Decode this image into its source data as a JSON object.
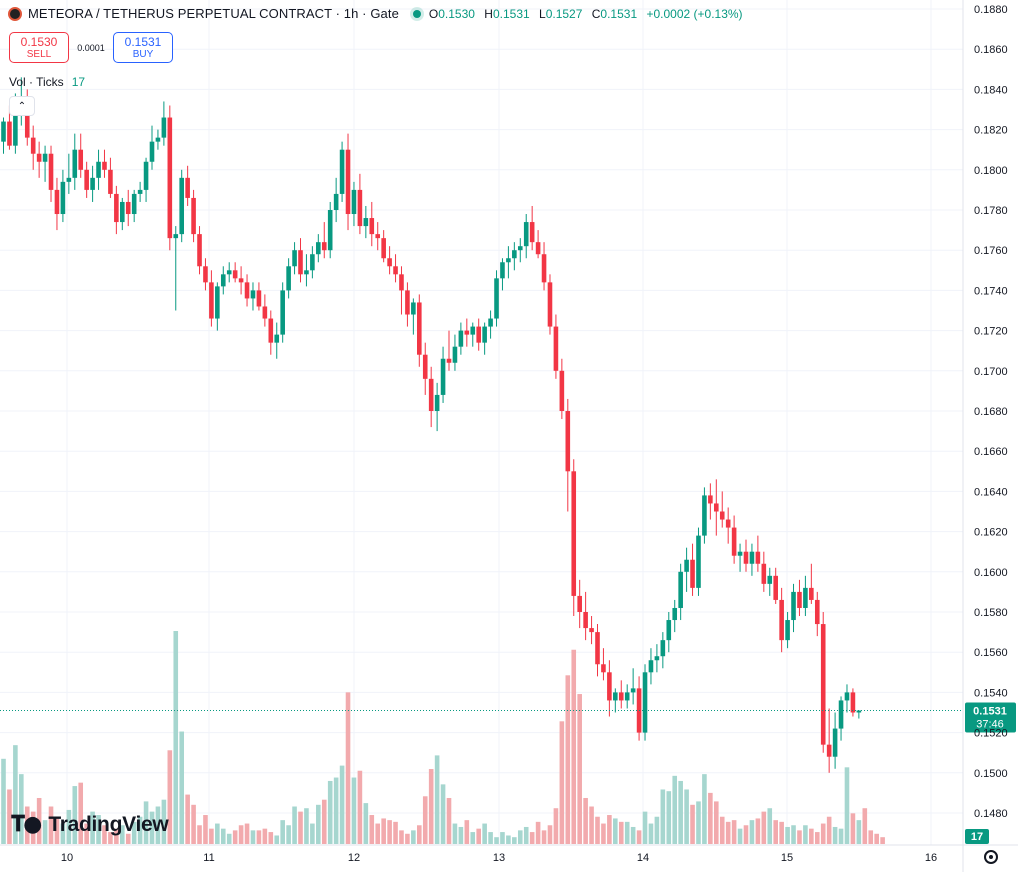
{
  "header": {
    "title": "METEORA / TETHERUS PERPETUAL CONTRACT · 1h · Gate",
    "ohlc": [
      {
        "k": "O",
        "v": "0.1530"
      },
      {
        "k": "H",
        "v": "0.1531"
      },
      {
        "k": "L",
        "v": "0.1527"
      },
      {
        "k": "C",
        "v": "0.1531"
      },
      {
        "k": "",
        "v": "+0.0002 (+0.13%)"
      }
    ]
  },
  "trade": {
    "sell_price": "0.1530",
    "sell_label": "SELL",
    "spread": "0.0001",
    "buy_price": "0.1531",
    "buy_label": "BUY"
  },
  "volume": {
    "label": "Vol · Ticks",
    "value": "17"
  },
  "branding": {
    "name": "TradingView"
  },
  "colors": {
    "up": "#089981",
    "down": "#f23645",
    "up_vol": "#a6d6cf",
    "down_vol": "#f2aaad",
    "grid": "#f0f3fa",
    "price_tag": "#089981"
  },
  "chart_data": {
    "type": "candlestick",
    "interval": "1h",
    "x_ticks": [
      "10",
      "11",
      "12",
      "13",
      "14",
      "15",
      "16"
    ],
    "y_ticks": [
      "0.1480",
      "0.1500",
      "0.1520",
      "0.1540",
      "0.1560",
      "0.1580",
      "0.1600",
      "0.1620",
      "0.1640",
      "0.1660",
      "0.1680",
      "0.1700",
      "0.1720",
      "0.1740",
      "0.1760",
      "0.1780",
      "0.1800",
      "0.1820",
      "0.1840",
      "0.1860",
      "0.1880"
    ],
    "ylim": [
      0.1468,
      0.1893
    ],
    "last_price": "0.1531",
    "countdown": "37:46",
    "volume_last": "17",
    "ohlc": [
      [
        0.1814,
        0.1826,
        0.1808,
        0.1824
      ],
      [
        0.1824,
        0.1832,
        0.181,
        0.1812
      ],
      [
        0.1812,
        0.1838,
        0.1808,
        0.1828
      ],
      [
        0.1828,
        0.1846,
        0.1822,
        0.1836
      ],
      [
        0.1836,
        0.184,
        0.1812,
        0.1816
      ],
      [
        0.1816,
        0.1822,
        0.18,
        0.1808
      ],
      [
        0.1808,
        0.1814,
        0.1796,
        0.1804
      ],
      [
        0.1804,
        0.1812,
        0.1794,
        0.1808
      ],
      [
        0.1808,
        0.1812,
        0.1784,
        0.179
      ],
      [
        0.179,
        0.1796,
        0.177,
        0.1778
      ],
      [
        0.1778,
        0.18,
        0.1774,
        0.1794
      ],
      [
        0.1794,
        0.1808,
        0.1788,
        0.1796
      ],
      [
        0.1796,
        0.1818,
        0.179,
        0.181
      ],
      [
        0.181,
        0.1818,
        0.1796,
        0.18
      ],
      [
        0.18,
        0.1804,
        0.1786,
        0.179
      ],
      [
        0.179,
        0.1802,
        0.1784,
        0.1796
      ],
      [
        0.1796,
        0.181,
        0.179,
        0.1804
      ],
      [
        0.1804,
        0.181,
        0.1796,
        0.18
      ],
      [
        0.18,
        0.1806,
        0.1786,
        0.1788
      ],
      [
        0.1788,
        0.1792,
        0.1768,
        0.1774
      ],
      [
        0.1774,
        0.1786,
        0.177,
        0.1784
      ],
      [
        0.1784,
        0.179,
        0.1772,
        0.1778
      ],
      [
        0.1778,
        0.179,
        0.1774,
        0.1788
      ],
      [
        0.1788,
        0.1794,
        0.1784,
        0.179
      ],
      [
        0.179,
        0.1806,
        0.1784,
        0.1804
      ],
      [
        0.1804,
        0.1822,
        0.18,
        0.1814
      ],
      [
        0.1814,
        0.182,
        0.181,
        0.1816
      ],
      [
        0.1816,
        0.1834,
        0.1812,
        0.1826
      ],
      [
        0.1826,
        0.1832,
        0.176,
        0.1766
      ],
      [
        0.1766,
        0.1772,
        0.173,
        0.1768
      ],
      [
        0.1768,
        0.18,
        0.1764,
        0.1796
      ],
      [
        0.1796,
        0.1802,
        0.1782,
        0.1786
      ],
      [
        0.1786,
        0.179,
        0.1764,
        0.1768
      ],
      [
        0.1768,
        0.1772,
        0.1748,
        0.1752
      ],
      [
        0.1752,
        0.1756,
        0.174,
        0.1744
      ],
      [
        0.1744,
        0.175,
        0.1722,
        0.1726
      ],
      [
        0.1726,
        0.1744,
        0.172,
        0.1742
      ],
      [
        0.1742,
        0.1752,
        0.1738,
        0.1748
      ],
      [
        0.1748,
        0.1754,
        0.1744,
        0.175
      ],
      [
        0.175,
        0.1754,
        0.1744,
        0.1746
      ],
      [
        0.1746,
        0.1752,
        0.1738,
        0.1744
      ],
      [
        0.1744,
        0.1748,
        0.1732,
        0.1736
      ],
      [
        0.1736,
        0.1744,
        0.173,
        0.174
      ],
      [
        0.174,
        0.1744,
        0.173,
        0.1732
      ],
      [
        0.1732,
        0.1738,
        0.1722,
        0.1726
      ],
      [
        0.1726,
        0.173,
        0.1708,
        0.1714
      ],
      [
        0.1714,
        0.1724,
        0.1706,
        0.1718
      ],
      [
        0.1718,
        0.1744,
        0.1714,
        0.174
      ],
      [
        0.174,
        0.1756,
        0.1736,
        0.1752
      ],
      [
        0.1752,
        0.1764,
        0.1748,
        0.176
      ],
      [
        0.176,
        0.1766,
        0.1744,
        0.1748
      ],
      [
        0.1748,
        0.1758,
        0.1742,
        0.175
      ],
      [
        0.175,
        0.1762,
        0.1746,
        0.1758
      ],
      [
        0.1758,
        0.1768,
        0.1754,
        0.1764
      ],
      [
        0.1764,
        0.1774,
        0.1756,
        0.176
      ],
      [
        0.176,
        0.1784,
        0.1756,
        0.178
      ],
      [
        0.178,
        0.1796,
        0.1774,
        0.1788
      ],
      [
        0.1788,
        0.1814,
        0.1784,
        0.181
      ],
      [
        0.181,
        0.1818,
        0.177,
        0.1778
      ],
      [
        0.1778,
        0.1794,
        0.1772,
        0.179
      ],
      [
        0.179,
        0.1798,
        0.1768,
        0.1772
      ],
      [
        0.1772,
        0.1782,
        0.1766,
        0.1776
      ],
      [
        0.1776,
        0.1784,
        0.1762,
        0.1768
      ],
      [
        0.1768,
        0.1774,
        0.176,
        0.1766
      ],
      [
        0.1766,
        0.177,
        0.1754,
        0.1756
      ],
      [
        0.1756,
        0.1762,
        0.1748,
        0.1752
      ],
      [
        0.1752,
        0.1758,
        0.1744,
        0.1748
      ],
      [
        0.1748,
        0.1752,
        0.1728,
        0.174
      ],
      [
        0.174,
        0.1744,
        0.1722,
        0.1728
      ],
      [
        0.1728,
        0.1736,
        0.1718,
        0.1734
      ],
      [
        0.1734,
        0.1738,
        0.1702,
        0.1708
      ],
      [
        0.1708,
        0.1714,
        0.1688,
        0.1696
      ],
      [
        0.1696,
        0.1702,
        0.1672,
        0.168
      ],
      [
        0.168,
        0.1694,
        0.167,
        0.1688
      ],
      [
        0.1688,
        0.1712,
        0.1684,
        0.1706
      ],
      [
        0.1706,
        0.172,
        0.17,
        0.1704
      ],
      [
        0.1704,
        0.1718,
        0.17,
        0.1712
      ],
      [
        0.1712,
        0.1724,
        0.1708,
        0.172
      ],
      [
        0.172,
        0.1726,
        0.1712,
        0.1718
      ],
      [
        0.1718,
        0.1724,
        0.1712,
        0.1722
      ],
      [
        0.1722,
        0.1726,
        0.171,
        0.1714
      ],
      [
        0.1714,
        0.1724,
        0.1708,
        0.1722
      ],
      [
        0.1722,
        0.173,
        0.1716,
        0.1726
      ],
      [
        0.1726,
        0.175,
        0.1722,
        0.1746
      ],
      [
        0.1746,
        0.1756,
        0.174,
        0.1754
      ],
      [
        0.1754,
        0.1762,
        0.1746,
        0.1756
      ],
      [
        0.1756,
        0.1764,
        0.175,
        0.176
      ],
      [
        0.176,
        0.1766,
        0.1754,
        0.1762
      ],
      [
        0.1762,
        0.1778,
        0.1756,
        0.1774
      ],
      [
        0.1774,
        0.1782,
        0.176,
        0.1764
      ],
      [
        0.1764,
        0.177,
        0.1756,
        0.1758
      ],
      [
        0.1758,
        0.1764,
        0.174,
        0.1744
      ],
      [
        0.1744,
        0.1748,
        0.1718,
        0.1722
      ],
      [
        0.1722,
        0.1728,
        0.1696,
        0.17
      ],
      [
        0.17,
        0.1706,
        0.1676,
        0.168
      ],
      [
        0.168,
        0.1686,
        0.163,
        0.165
      ],
      [
        0.165,
        0.1656,
        0.1578,
        0.1588
      ],
      [
        0.1588,
        0.1596,
        0.1572,
        0.158
      ],
      [
        0.158,
        0.159,
        0.1566,
        0.1572
      ],
      [
        0.1572,
        0.1578,
        0.1564,
        0.157
      ],
      [
        0.157,
        0.1574,
        0.1548,
        0.1554
      ],
      [
        0.1554,
        0.1562,
        0.1546,
        0.155
      ],
      [
        0.155,
        0.1556,
        0.1528,
        0.1536
      ],
      [
        0.1536,
        0.1542,
        0.153,
        0.154
      ],
      [
        0.154,
        0.1546,
        0.1532,
        0.1536
      ],
      [
        0.1536,
        0.1544,
        0.1532,
        0.154
      ],
      [
        0.154,
        0.1552,
        0.1534,
        0.1542
      ],
      [
        0.1542,
        0.1548,
        0.1516,
        0.152
      ],
      [
        0.152,
        0.1554,
        0.1516,
        0.155
      ],
      [
        0.155,
        0.1562,
        0.1544,
        0.1556
      ],
      [
        0.1556,
        0.1564,
        0.155,
        0.1558
      ],
      [
        0.1558,
        0.157,
        0.1552,
        0.1566
      ],
      [
        0.1566,
        0.158,
        0.156,
        0.1576
      ],
      [
        0.1576,
        0.1586,
        0.157,
        0.1582
      ],
      [
        0.1582,
        0.1604,
        0.1576,
        0.16
      ],
      [
        0.16,
        0.1612,
        0.159,
        0.1606
      ],
      [
        0.1606,
        0.1614,
        0.1588,
        0.1592
      ],
      [
        0.1592,
        0.1622,
        0.1588,
        0.1618
      ],
      [
        0.1618,
        0.1642,
        0.1614,
        0.1638
      ],
      [
        0.1638,
        0.1644,
        0.1626,
        0.1634
      ],
      [
        0.1634,
        0.1646,
        0.1618,
        0.163
      ],
      [
        0.163,
        0.164,
        0.1622,
        0.1626
      ],
      [
        0.1626,
        0.1632,
        0.1614,
        0.1622
      ],
      [
        0.1622,
        0.1628,
        0.1604,
        0.1608
      ],
      [
        0.1608,
        0.1614,
        0.16,
        0.161
      ],
      [
        0.161,
        0.1616,
        0.16,
        0.1604
      ],
      [
        0.1604,
        0.1614,
        0.1598,
        0.161
      ],
      [
        0.161,
        0.1618,
        0.16,
        0.1604
      ],
      [
        0.1604,
        0.161,
        0.159,
        0.1594
      ],
      [
        0.1594,
        0.1602,
        0.1588,
        0.1598
      ],
      [
        0.1598,
        0.1602,
        0.1584,
        0.1586
      ],
      [
        0.1586,
        0.1592,
        0.156,
        0.1566
      ],
      [
        0.1566,
        0.158,
        0.1562,
        0.1576
      ],
      [
        0.1576,
        0.1594,
        0.157,
        0.159
      ],
      [
        0.159,
        0.1596,
        0.1578,
        0.1582
      ],
      [
        0.1582,
        0.1598,
        0.1578,
        0.1592
      ],
      [
        0.1592,
        0.1604,
        0.1584,
        0.1586
      ],
      [
        0.1586,
        0.159,
        0.1568,
        0.1574
      ],
      [
        0.1574,
        0.158,
        0.151,
        0.1514
      ],
      [
        0.1514,
        0.1532,
        0.15,
        0.1508
      ],
      [
        0.1508,
        0.153,
        0.1502,
        0.1522
      ],
      [
        0.1522,
        0.1538,
        0.1516,
        0.1536
      ],
      [
        0.1536,
        0.1544,
        0.153,
        0.154
      ],
      [
        0.154,
        0.1542,
        0.1528,
        0.153
      ],
      [
        0.153,
        0.1531,
        0.1527,
        0.1531
      ]
    ],
    "volumes": [
      5.0,
      3.2,
      5.8,
      4.1,
      2.2,
      1.9,
      2.7,
      1.4,
      2.2,
      1.6,
      1.2,
      2.0,
      3.4,
      3.6,
      1.2,
      1.9,
      1.7,
      1.1,
      0.7,
      0.9,
      1.1,
      0.6,
      1.3,
      1.6,
      2.5,
      1.9,
      2.2,
      2.6,
      5.5,
      12.5,
      6.6,
      2.9,
      2.3,
      1.1,
      1.7,
      0.9,
      1.2,
      0.9,
      0.6,
      0.8,
      1.1,
      1.2,
      0.8,
      0.8,
      0.9,
      0.7,
      0.5,
      1.4,
      1.1,
      2.2,
      1.9,
      2.1,
      1.2,
      2.3,
      2.6,
      3.7,
      3.9,
      4.6,
      8.9,
      3.9,
      4.3,
      2.4,
      1.7,
      1.2,
      1.5,
      1.4,
      1.3,
      0.8,
      0.6,
      0.8,
      1.1,
      2.8,
      4.4,
      5.2,
      3.5,
      2.7,
      1.2,
      1.0,
      1.4,
      0.7,
      0.9,
      1.2,
      0.7,
      0.4,
      0.7,
      0.5,
      0.4,
      0.8,
      1.0,
      0.7,
      1.3,
      0.8,
      1.1,
      2.1,
      7.2,
      9.9,
      11.4,
      8.8,
      2.7,
      2.2,
      1.6,
      1.2,
      1.7,
      1.5,
      1.3,
      1.3,
      1.0,
      0.8,
      1.9,
      1.2,
      1.6,
      3.2,
      3.1,
      4.0,
      3.7,
      3.2,
      2.3,
      2.5,
      4.1,
      3.0,
      2.5,
      1.6,
      1.3,
      1.4,
      0.9,
      1.1,
      1.4,
      1.5,
      1.9,
      2.1,
      1.4,
      1.3,
      1.0,
      1.1,
      0.8,
      1.1,
      0.9,
      0.7,
      1.2,
      1.6,
      1.0,
      0.9,
      4.5,
      1.8,
      1.4,
      2.1,
      0.8,
      0.6,
      0.4
    ]
  }
}
